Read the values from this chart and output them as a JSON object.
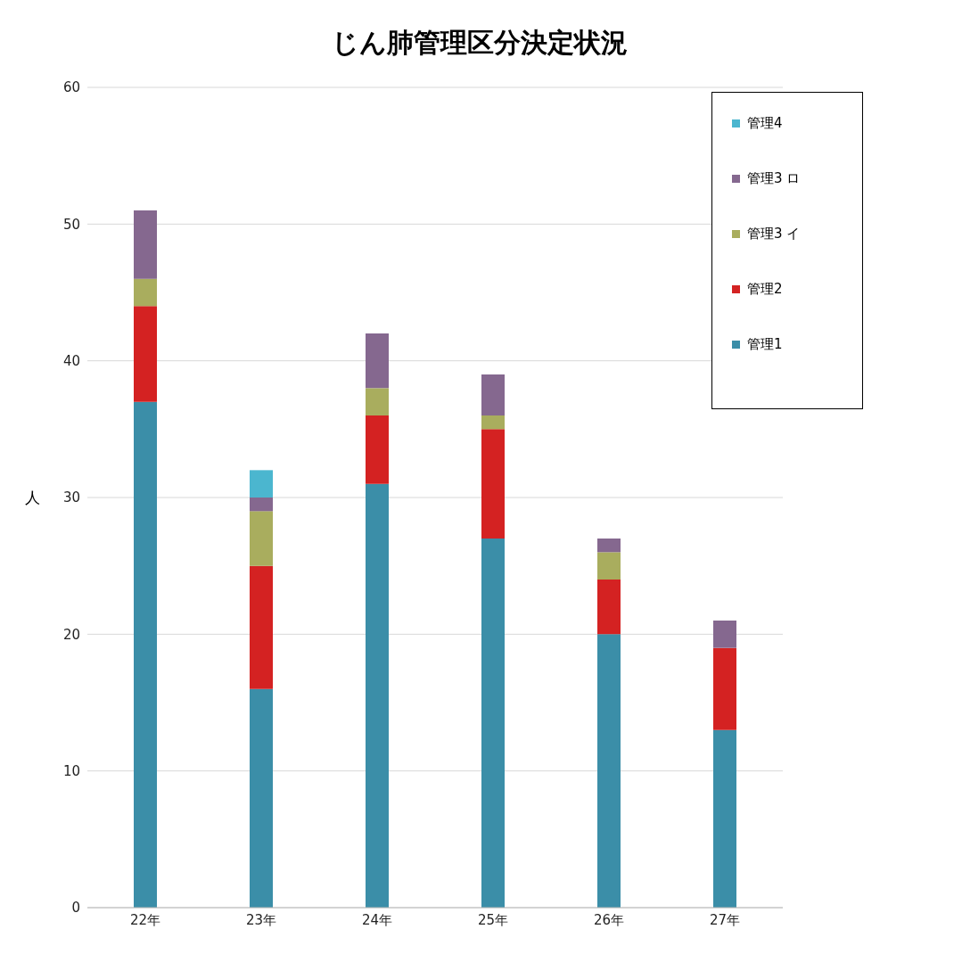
{
  "chart_data": {
    "type": "bar",
    "title": "じん肺管理区分決定状況",
    "ylabel": "人",
    "categories": [
      "22年",
      "23年",
      "24年",
      "25年",
      "26年",
      "27年"
    ],
    "stacked": true,
    "series": [
      {
        "name": "管理1",
        "color": "#3b8ea8",
        "values": [
          37,
          16,
          31,
          27,
          20,
          13
        ]
      },
      {
        "name": "管理2",
        "color": "#d42222",
        "values": [
          7,
          9,
          5,
          8,
          4,
          6
        ]
      },
      {
        "name": "管理3 イ",
        "color": "#a9ad5e",
        "values": [
          2,
          4,
          2,
          1,
          2,
          0
        ]
      },
      {
        "name": "管理3 ロ",
        "color": "#85688f",
        "values": [
          5,
          1,
          4,
          3,
          1,
          2
        ]
      },
      {
        "name": "管理4",
        "color": "#4bb6cf",
        "values": [
          0,
          2,
          0,
          0,
          0,
          0
        ]
      }
    ],
    "ylim": [
      0,
      60
    ],
    "yticks": [
      0,
      10,
      20,
      30,
      40,
      50,
      60
    ],
    "grid": "y",
    "legend": "top right"
  }
}
